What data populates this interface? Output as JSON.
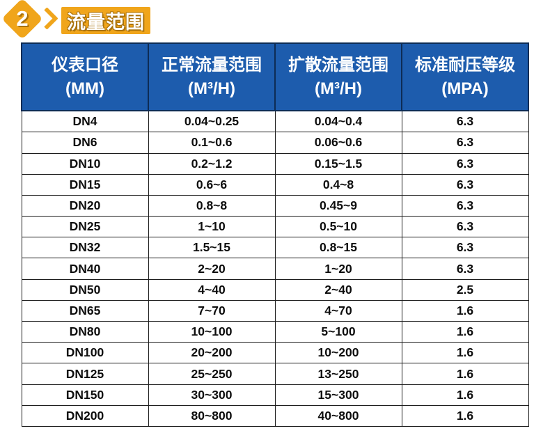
{
  "colors": {
    "orange": "#F0A51B",
    "orange_dark": "#A9720D",
    "header_blue": "#1D5CAD",
    "header_border_navy": "#0D2C55",
    "cell_border": "#1C1C1C",
    "body_text": "#0D0D0D",
    "page_bg": "#FFFFFF"
  },
  "section_header": {
    "number": "2",
    "title": "流量范围"
  },
  "table": {
    "column_keys": [
      "diameter",
      "normal-flow-range",
      "extended-flow-range",
      "pressure-rating"
    ],
    "columns": [
      {
        "line1": "仪表口径",
        "line2": "(MM)"
      },
      {
        "line1": "正常流量范围",
        "line2": "(M³/H)"
      },
      {
        "line1": "扩散流量范围",
        "line2": "(M³/H)"
      },
      {
        "line1": "标准耐压等级",
        "line2": "(MPA)"
      }
    ],
    "rows": [
      [
        "DN4",
        "0.04~0.25",
        "0.04~0.4",
        "6.3"
      ],
      [
        "DN6",
        "0.1~0.6",
        "0.06~0.6",
        "6.3"
      ],
      [
        "DN10",
        "0.2~1.2",
        "0.15~1.5",
        "6.3"
      ],
      [
        "DN15",
        "0.6~6",
        "0.4~8",
        "6.3"
      ],
      [
        "DN20",
        "0.8~8",
        "0.45~9",
        "6.3"
      ],
      [
        "DN25",
        "1~10",
        "0.5~10",
        "6.3"
      ],
      [
        "DN32",
        "1.5~15",
        "0.8~15",
        "6.3"
      ],
      [
        "DN40",
        "2~20",
        "1~20",
        "6.3"
      ],
      [
        "DN50",
        "4~40",
        "2~40",
        "2.5"
      ],
      [
        "DN65",
        "7~70",
        "4~70",
        "1.6"
      ],
      [
        "DN80",
        "10~100",
        "5~100",
        "1.6"
      ],
      [
        "DN100",
        "20~200",
        "10~200",
        "1.6"
      ],
      [
        "DN125",
        "25~250",
        "13~250",
        "1.6"
      ],
      [
        "DN150",
        "30~300",
        "15~300",
        "1.6"
      ],
      [
        "DN200",
        "80~800",
        "40~800",
        "1.6"
      ]
    ]
  }
}
